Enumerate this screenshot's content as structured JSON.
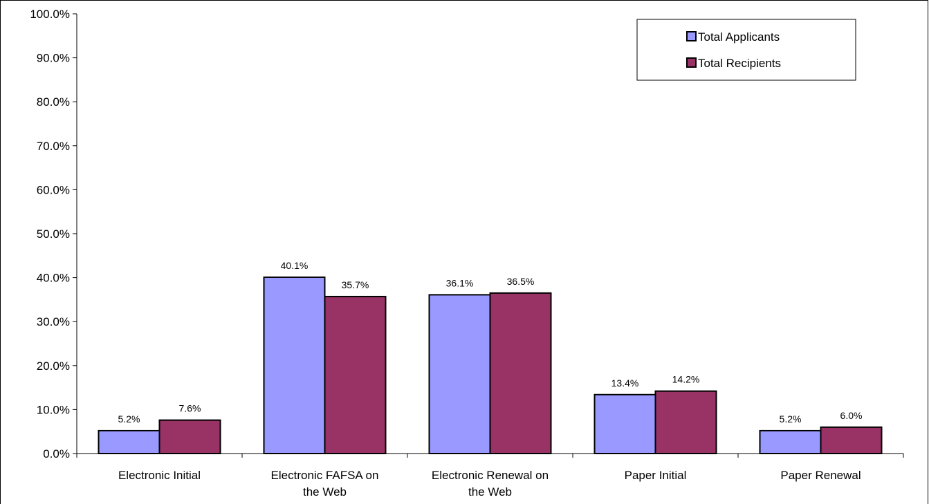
{
  "chart_data": {
    "type": "bar",
    "title": "",
    "xlabel": "",
    "ylabel": "",
    "categories": [
      [
        "Electronic Initial"
      ],
      [
        "Electronic FAFSA on",
        "the Web"
      ],
      [
        "Electronic Renewal on",
        "the Web"
      ],
      [
        "Paper Initial"
      ],
      [
        "Paper Renewal"
      ]
    ],
    "series": [
      {
        "name": "Total Applicants",
        "color": "#9999FF",
        "values": [
          5.2,
          40.1,
          36.1,
          13.4,
          5.2
        ],
        "labels": [
          "5.2%",
          "40.1%",
          "36.1%",
          "13.4%",
          "5.2%"
        ]
      },
      {
        "name": "Total Recipients",
        "color": "#993366",
        "values": [
          7.6,
          35.7,
          36.5,
          14.2,
          6.0
        ],
        "labels": [
          "7.6%",
          "35.7%",
          "36.5%",
          "14.2%",
          "6.0%"
        ]
      }
    ],
    "ylim": [
      0,
      100
    ],
    "yticks": [
      0,
      10,
      20,
      30,
      40,
      50,
      60,
      70,
      80,
      90,
      100
    ],
    "ytick_labels": [
      "0.0%",
      "10.0%",
      "20.0%",
      "30.0%",
      "40.0%",
      "50.0%",
      "60.0%",
      "70.0%",
      "80.0%",
      "90.0%",
      "100.0%"
    ],
    "grid": false,
    "legend": "top-right"
  }
}
